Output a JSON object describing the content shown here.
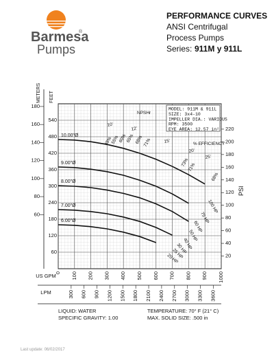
{
  "logo": {
    "name": "Barmesa",
    "mark": "®",
    "sub": "Pumps"
  },
  "header": {
    "title": "PERFORMANCE CURVES",
    "line1": "ANSI Centrifugal",
    "line2": "Process Pumps",
    "series_label": "Series:",
    "series": "911M y 911L"
  },
  "chart_data": {
    "type": "line",
    "info": [
      "MODEL: 911M & 911L",
      "SIZE: 3x4-10",
      "IMPELLER DIA.: VARIOUS",
      "RPM: 3500",
      "EYE AREA: 12.57 in²"
    ],
    "xlabel": "US GPM",
    "xlim": [
      0,
      1000
    ],
    "xticks": [
      0,
      100,
      200,
      300,
      400,
      500,
      600,
      700,
      800,
      900,
      1000
    ],
    "lpm_label": "LPM",
    "lpm_lim": [
      0,
      3785
    ],
    "lpm_ticks": [
      300,
      600,
      900,
      1200,
      1500,
      1800,
      2100,
      2400,
      2700,
      3000,
      3300,
      3600
    ],
    "ylabel": "FEET",
    "ylim": [
      0,
      600
    ],
    "yticks": [
      60,
      120,
      180,
      240,
      300,
      360,
      420,
      480,
      540
    ],
    "meters_label": "METERS",
    "meters_lim": [
      0,
      183
    ],
    "meters_ticks": [
      60,
      80,
      100,
      120,
      140,
      160,
      180
    ],
    "y2label": "PSI",
    "y2lim": [
      0,
      260
    ],
    "y2ticks": [
      20,
      40,
      60,
      80,
      100,
      120,
      140,
      160,
      180,
      200,
      220
    ],
    "grid": true,
    "color": "#111111",
    "x": [
      0,
      100,
      200,
      300,
      400,
      500,
      600,
      700,
      800,
      900
    ],
    "series": [
      {
        "name": "10.00\"Ø",
        "values": [
          470,
          468,
          462,
          452,
          438,
          420,
          398,
          372,
          342,
          308
        ]
      },
      {
        "name": "9.00\"Ø",
        "values": [
          370,
          368,
          362,
          353,
          340,
          322,
          300,
          272,
          238,
          null
        ]
      },
      {
        "name": "8.00\"Ø",
        "values": [
          302,
          300,
          295,
          286,
          274,
          258,
          236,
          208,
          172,
          null
        ]
      },
      {
        "name": "7.00\"Ø",
        "values": [
          215,
          213,
          208,
          200,
          188,
          172,
          150,
          122,
          null,
          null
        ]
      },
      {
        "name": "6.00\"Ø",
        "values": [
          160,
          158,
          153,
          145,
          133,
          117,
          95,
          null,
          null,
          null
        ]
      }
    ],
    "annotations": [
      "NPSHr",
      "10'",
      "12'",
      "15'",
      "20'",
      "25'",
      "% EFFICIENCY",
      "45%",
      "55%",
      "60%",
      "65%",
      "68%",
      "71%",
      "73%",
      "71%",
      "68%",
      "100 HP",
      "75 HP",
      "60 HP",
      "50 HP",
      "40 HP",
      "30 HP",
      "25 HP",
      "20 HP"
    ]
  },
  "footer": {
    "liquid": "LIQUID: WATER",
    "gravity": "SPECIFIC GRAVITY: 1.00",
    "temperature": "TEMPERATURE: 70° F (21° C)",
    "solid": "MAX. SOLID SIZE: .500 in",
    "update": "Last update: 06/02/2017"
  }
}
